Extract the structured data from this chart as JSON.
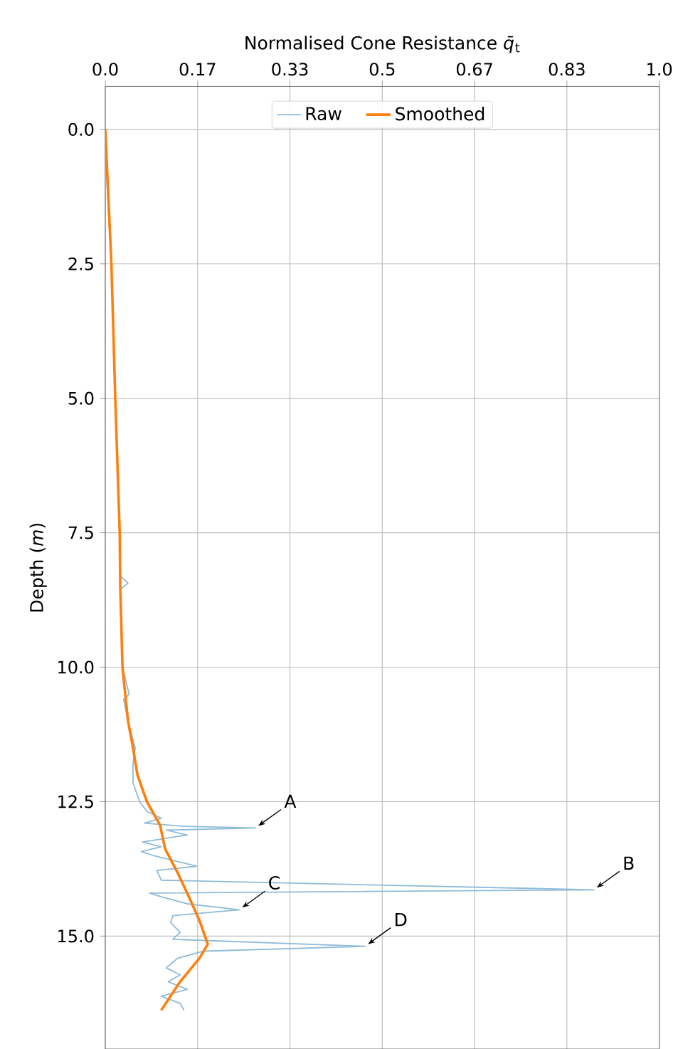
{
  "chart_data": {
    "type": "line",
    "xlabel": "Normalised Cone Resistance *q̄*$_{t}$",
    "ylabel": "Depth (*m*)",
    "xlim": [
      0,
      1
    ],
    "ylim": [
      17.1,
      -0.8
    ],
    "xticks": [
      {
        "value": 0,
        "label": "0.0"
      },
      {
        "value": 0.1667,
        "label": "0.17"
      },
      {
        "value": 0.3333,
        "label": "0.33"
      },
      {
        "value": 0.5,
        "label": "0.5"
      },
      {
        "value": 0.6667,
        "label": "0.67"
      },
      {
        "value": 0.8333,
        "label": "0.83"
      },
      {
        "value": 1,
        "label": "1.0"
      }
    ],
    "yticks": [
      {
        "value": 0,
        "label": "0.0"
      },
      {
        "value": 2.5,
        "label": "2.5"
      },
      {
        "value": 5,
        "label": "5.0"
      },
      {
        "value": 7.5,
        "label": "7.5"
      },
      {
        "value": 10,
        "label": "10.0"
      },
      {
        "value": 12.5,
        "label": "12.5"
      },
      {
        "value": 15,
        "label": "15.0"
      }
    ],
    "grid": true,
    "legend": "top",
    "series": [
      {
        "name": "Raw",
        "color": "#8fbbd9",
        "x": [
          0,
          0.003,
          0.011,
          0.018,
          0.02,
          0.026,
          0.027,
          0.041,
          0.027,
          0.031,
          0.043,
          0.033,
          0.041,
          0.054,
          0.05,
          0.05,
          0.062,
          0.075,
          0.101,
          0.071,
          0.144,
          0.271,
          0.11,
          0.148,
          0.067,
          0.101,
          0.065,
          0.093,
          0.165,
          0.093,
          0.101,
          0.882,
          0.08,
          0.101,
          0.148,
          0.242,
          0.122,
          0.118,
          0.135,
          0.122,
          0.469,
          0.178,
          0.131,
          0.11,
          0.135,
          0.114,
          0.148,
          0.101,
          0.135,
          0.142
        ],
        "values": [
          0,
          1,
          2.5,
          5,
          5.6,
          7.5,
          8.3,
          8.44,
          8.55,
          10,
          10.5,
          10.6,
          11,
          11.5,
          11.8,
          12.15,
          12.5,
          12.68,
          12.81,
          12.9,
          12.96,
          12.99,
          13.03,
          13.12,
          13.25,
          13.34,
          13.43,
          13.52,
          13.7,
          13.78,
          13.96,
          14.14,
          14.2,
          14.27,
          14.4,
          14.51,
          14.62,
          14.75,
          14.93,
          15.06,
          15.19,
          15.28,
          15.41,
          15.59,
          15.72,
          15.85,
          15.99,
          16.12,
          16.25,
          16.38
        ]
      },
      {
        "name": "Smoothed",
        "color": "#ff7f0e",
        "x": [
          0,
          0.011,
          0.018,
          0.026,
          0.027,
          0.031,
          0.041,
          0.05,
          0.058,
          0.075,
          0.099,
          0.108,
          0.131,
          0.151,
          0.17,
          0.185,
          0.17,
          0.135,
          0.101
        ],
        "values": [
          0,
          2.5,
          5,
          7.5,
          8.5,
          10,
          11,
          11.5,
          12,
          12.5,
          12.94,
          13.38,
          13.83,
          14.27,
          14.71,
          15.15,
          15.41,
          15.85,
          16.38
        ]
      }
    ],
    "annotations": [
      {
        "text": "A",
        "x": 0.271,
        "y": 12.99
      },
      {
        "text": "B",
        "x": 0.882,
        "y": 14.14
      },
      {
        "text": "C",
        "x": 0.242,
        "y": 14.51
      },
      {
        "text": "D",
        "x": 0.469,
        "y": 15.19
      }
    ]
  }
}
